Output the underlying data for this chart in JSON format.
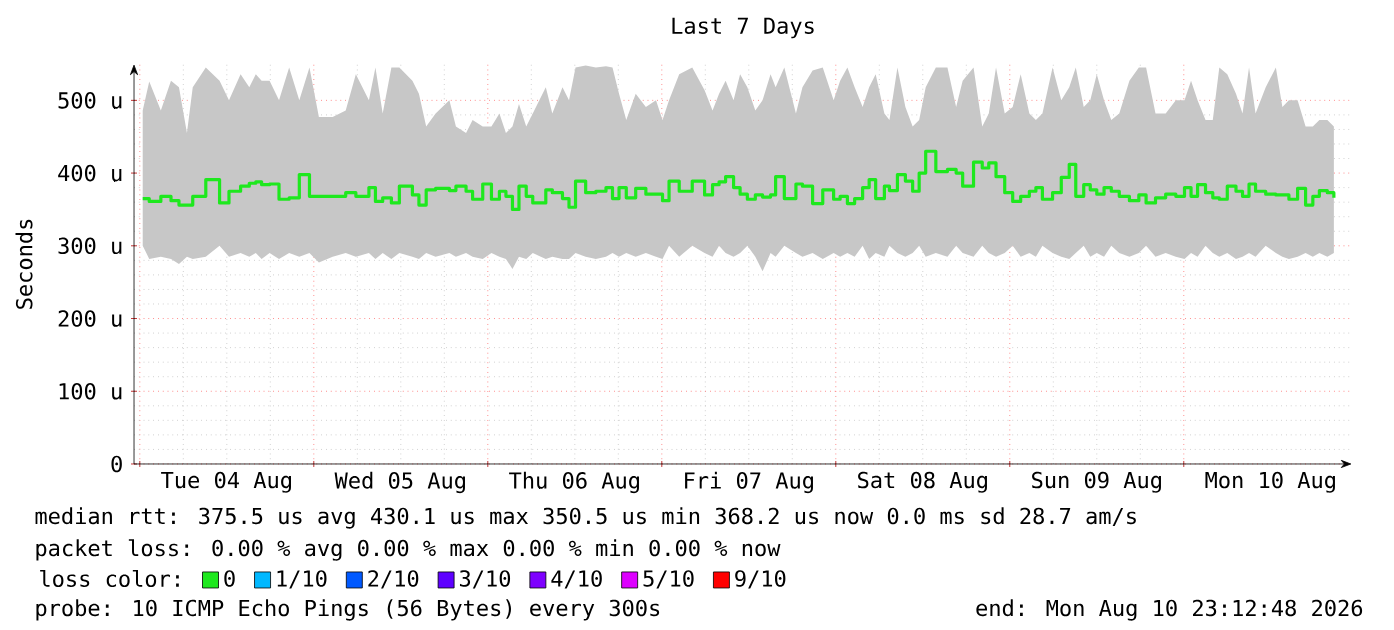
{
  "chart_data": {
    "type": "step",
    "title": "Last 7 Days",
    "ylabel": "Seconds",
    "xlim": [
      "2026-08-03T23:12",
      "2026-08-10T23:12"
    ],
    "ylim": [
      0,
      550
    ],
    "xticks": [
      {
        "value": "2026-08-04T00:00",
        "label": null
      },
      {
        "value": "2026-08-05T00:00",
        "label": null
      },
      {
        "value": "2026-08-06T00:00",
        "label": null
      },
      {
        "value": "2026-08-07T00:00",
        "label": null
      },
      {
        "value": "2026-08-08T00:00",
        "label": null
      },
      {
        "value": "2026-08-09T00:00",
        "label": null
      },
      {
        "value": "2026-08-10T00:00",
        "label": null
      },
      {
        "value": "2026-08-04T12:00",
        "label": "Tue 04 Aug"
      },
      {
        "value": "2026-08-05T12:00",
        "label": "Wed 05 Aug"
      },
      {
        "value": "2026-08-06T12:00",
        "label": "Thu 06 Aug"
      },
      {
        "value": "2026-08-07T12:00",
        "label": "Fri 07 Aug"
      },
      {
        "value": "2026-08-08T12:00",
        "label": "Sat 08 Aug"
      },
      {
        "value": "2026-08-09T12:00",
        "label": "Sun 09 Aug"
      },
      {
        "value": "2026-08-10T12:00",
        "label": "Mon 10 Aug"
      }
    ],
    "yticks": [
      0,
      {
        "value": 100,
        "label": "100 u"
      },
      {
        "value": 200,
        "label": "200 u"
      },
      {
        "value": 300,
        "label": "300 u"
      },
      {
        "value": 400,
        "label": "400 u"
      },
      {
        "value": 500,
        "label": "500 u"
      }
    ],
    "grid": true,
    "legend": "bottom",
    "legend_title": "loss color:",
    "series": [
      {
        "name": "0",
        "color": "#1ee81e",
        "x": [
          "2026-08-04T00:24",
          "2026-08-04T01:18",
          "2026-08-04T02:54",
          "2026-08-04T04:18",
          "2026-08-04T05:24",
          "2026-08-04T06:30",
          "2026-08-04T07:18",
          "2026-08-04T09:06",
          "2026-08-04T11:00",
          "2026-08-04T12:18",
          "2026-08-04T13:54",
          "2026-08-04T15:06",
          "2026-08-04T16:00",
          "2026-08-04T16:48",
          "2026-08-04T17:54",
          "2026-08-04T19:12",
          "2026-08-04T20:36",
          "2026-08-04T22:00",
          "2026-08-04T23:24",
          "2026-08-05T00:42",
          "2026-08-05T02:36",
          "2026-08-05T04:24",
          "2026-08-05T05:48",
          "2026-08-05T07:36",
          "2026-08-05T08:30",
          "2026-08-05T09:30",
          "2026-08-05T10:42",
          "2026-08-05T11:48",
          "2026-08-05T13:36",
          "2026-08-05T14:30",
          "2026-08-05T15:30",
          "2026-08-05T16:48",
          "2026-08-05T18:42",
          "2026-08-05T19:36",
          "2026-08-05T21:00",
          "2026-08-05T21:54",
          "2026-08-05T23:18",
          "2026-08-06T00:30",
          "2026-08-06T01:36",
          "2026-08-06T02:30",
          "2026-08-06T03:24",
          "2026-08-06T04:18",
          "2026-08-06T05:18",
          "2026-08-06T06:12",
          "2026-08-06T08:00",
          "2026-08-06T08:54",
          "2026-08-06T10:18",
          "2026-08-06T11:12",
          "2026-08-06T12:06",
          "2026-08-06T13:30",
          "2026-08-06T14:54",
          "2026-08-06T16:18",
          "2026-08-06T17:12",
          "2026-08-06T18:06",
          "2026-08-06T19:06",
          "2026-08-06T20:24",
          "2026-08-06T21:48",
          "2026-08-06T23:12",
          "2026-08-07T00:06",
          "2026-08-07T01:00",
          "2026-08-07T02:24",
          "2026-08-07T04:12",
          "2026-08-07T05:54",
          "2026-08-07T07:00",
          "2026-08-07T07:54",
          "2026-08-07T08:48",
          "2026-08-07T09:54",
          "2026-08-07T10:48",
          "2026-08-07T11:48",
          "2026-08-07T12:54",
          "2026-08-07T13:54",
          "2026-08-07T15:00",
          "2026-08-07T15:42",
          "2026-08-07T16:54",
          "2026-08-07T18:30",
          "2026-08-07T19:24",
          "2026-08-07T20:48",
          "2026-08-07T22:12",
          "2026-08-07T23:42",
          "2026-08-08T00:36",
          "2026-08-08T01:36",
          "2026-08-08T02:36",
          "2026-08-08T03:42",
          "2026-08-08T04:36",
          "2026-08-08T05:30",
          "2026-08-08T06:42",
          "2026-08-08T07:24",
          "2026-08-08T08:30",
          "2026-08-08T09:36",
          "2026-08-08T10:36",
          "2026-08-08T11:30",
          "2026-08-08T12:24",
          "2026-08-08T13:48",
          "2026-08-08T15:24",
          "2026-08-08T16:36",
          "2026-08-08T17:30",
          "2026-08-08T19:00",
          "2026-08-08T20:12",
          "2026-08-08T21:06",
          "2026-08-08T22:06",
          "2026-08-08T23:18",
          "2026-08-09T00:24",
          "2026-08-09T01:30",
          "2026-08-09T02:42",
          "2026-08-09T03:36",
          "2026-08-09T04:30",
          "2026-08-09T05:54",
          "2026-08-09T07:06",
          "2026-08-09T08:12",
          "2026-08-09T09:06",
          "2026-08-09T10:12",
          "2026-08-09T11:06",
          "2026-08-09T12:00",
          "2026-08-09T13:00",
          "2026-08-09T14:00",
          "2026-08-09T15:06",
          "2026-08-09T16:30",
          "2026-08-09T17:48",
          "2026-08-09T18:48",
          "2026-08-09T20:06",
          "2026-08-09T21:30",
          "2026-08-09T22:54",
          "2026-08-10T00:06",
          "2026-08-10T01:00",
          "2026-08-10T01:54",
          "2026-08-10T03:00",
          "2026-08-10T04:00",
          "2026-08-10T04:54",
          "2026-08-10T06:00",
          "2026-08-10T07:12",
          "2026-08-10T08:06",
          "2026-08-10T09:00",
          "2026-08-10T09:54",
          "2026-08-10T11:18",
          "2026-08-10T12:42",
          "2026-08-10T13:36",
          "2026-08-10T14:30",
          "2026-08-10T15:42",
          "2026-08-10T16:48",
          "2026-08-10T17:48",
          "2026-08-10T18:42",
          "2026-08-10T19:48",
          "2026-08-10T20:42"
        ],
        "values": [
          365,
          361,
          368,
          362,
          356,
          356,
          368,
          391,
          359,
          375,
          382,
          386,
          388,
          384,
          385,
          364,
          366,
          398,
          368,
          368,
          368,
          373,
          368,
          380,
          361,
          366,
          359,
          382,
          370,
          356,
          377,
          379,
          376,
          382,
          375,
          364,
          385,
          364,
          375,
          368,
          350,
          382,
          368,
          359,
          377,
          373,
          365,
          353,
          389,
          373,
          375,
          380,
          365,
          380,
          366,
          379,
          371,
          371,
          362,
          389,
          375,
          389,
          370,
          384,
          388,
          395,
          380,
          371,
          364,
          370,
          367,
          370,
          395,
          365,
          385,
          382,
          358,
          377,
          364,
          368,
          358,
          365,
          380,
          391,
          365,
          382,
          376,
          398,
          389,
          375,
          400,
          430,
          402,
          405,
          400,
          382,
          415,
          407,
          414,
          395,
          373,
          361,
          368,
          375,
          380,
          364,
          373,
          394,
          412,
          368,
          384,
          377,
          371,
          380,
          375,
          368,
          362,
          370,
          359,
          366,
          371,
          368,
          380,
          368,
          384,
          373,
          366,
          364,
          382,
          375,
          368,
          385,
          375,
          371,
          370,
          370,
          364,
          379,
          356,
          368,
          376,
          373,
          366
        ],
        "upper": [
          486,
          526,
          486,
          527,
          518,
          455,
          518,
          545,
          527,
          500,
          536,
          518,
          536,
          527,
          527,
          500,
          545,
          500,
          545,
          477,
          477,
          486,
          536,
          500,
          545,
          482,
          545,
          545,
          527,
          509,
          464,
          482,
          500,
          464,
          455,
          473,
          464,
          464,
          482,
          455,
          464,
          495,
          464,
          482,
          518,
          482,
          518,
          500,
          545,
          548,
          545,
          547,
          545,
          509,
          473,
          509,
          491,
          500,
          473,
          500,
          536,
          545,
          514,
          486,
          509,
          527,
          500,
          536,
          518,
          486,
          500,
          536,
          518,
          545,
          482,
          518,
          541,
          545,
          500,
          527,
          545,
          518,
          491,
          518,
          536,
          482,
          473,
          545,
          491,
          464,
          473,
          518,
          545,
          545,
          491,
          527,
          545,
          464,
          482,
          545,
          482,
          491,
          536,
          482,
          473,
          482,
          545,
          500,
          518,
          545,
          491,
          500,
          536,
          500,
          473,
          482,
          527,
          545,
          545,
          482,
          482,
          500,
          500,
          527,
          500,
          473,
          473,
          545,
          536,
          509,
          482,
          545,
          482,
          518,
          545,
          491,
          500,
          500,
          464,
          464,
          473,
          473,
          464
        ],
        "lower": [
          300,
          282,
          285,
          282,
          275,
          285,
          282,
          285,
          300,
          285,
          290,
          285,
          290,
          282,
          290,
          282,
          290,
          285,
          290,
          277,
          285,
          290,
          285,
          290,
          282,
          290,
          282,
          290,
          285,
          282,
          290,
          285,
          290,
          285,
          290,
          285,
          282,
          290,
          285,
          282,
          268,
          285,
          282,
          290,
          282,
          285,
          282,
          282,
          290,
          285,
          282,
          285,
          290,
          285,
          290,
          285,
          290,
          285,
          282,
          300,
          285,
          300,
          290,
          285,
          300,
          290,
          285,
          290,
          300,
          285,
          265,
          290,
          285,
          300,
          290,
          285,
          290,
          282,
          290,
          285,
          290,
          285,
          300,
          282,
          290,
          285,
          300,
          290,
          285,
          290,
          300,
          285,
          290,
          285,
          300,
          290,
          285,
          300,
          290,
          285,
          290,
          300,
          285,
          290,
          285,
          300,
          290,
          285,
          282,
          290,
          300,
          285,
          290,
          285,
          300,
          290,
          285,
          290,
          300,
          285,
          290,
          285,
          282,
          290,
          285,
          300,
          290,
          285,
          290,
          282,
          285,
          290,
          285,
          300,
          290,
          285,
          282,
          285,
          290,
          285,
          290,
          285,
          290
        ]
      },
      {
        "name": "1/10",
        "color": "#00b8ff",
        "values": [
          null
        ]
      },
      {
        "name": "2/10",
        "color": "#0059ff",
        "values": [
          null
        ]
      },
      {
        "name": "3/10",
        "color": "#5e00ff",
        "values": [
          null
        ]
      },
      {
        "name": "4/10",
        "color": "#7e00ff",
        "values": [
          null
        ]
      },
      {
        "name": "5/10",
        "color": "#dd00ff",
        "values": [
          null
        ]
      },
      {
        "name": "9/10",
        "color": "#ff0000",
        "values": [
          null
        ]
      }
    ],
    "annotations": [
      "median rtt:  375.5 us avg   430.1 us max   350.5 us min   368.2 us now   0.0 ms sd   28.7   am/s",
      "packet loss: 0.00 % avg   0.00 % max   0.00 % min   0.00 % now",
      "probe:        10 ICMP Echo Pings (56 Bytes) every 300s",
      "end: Mon Aug 10 23:12:48 2026"
    ]
  }
}
